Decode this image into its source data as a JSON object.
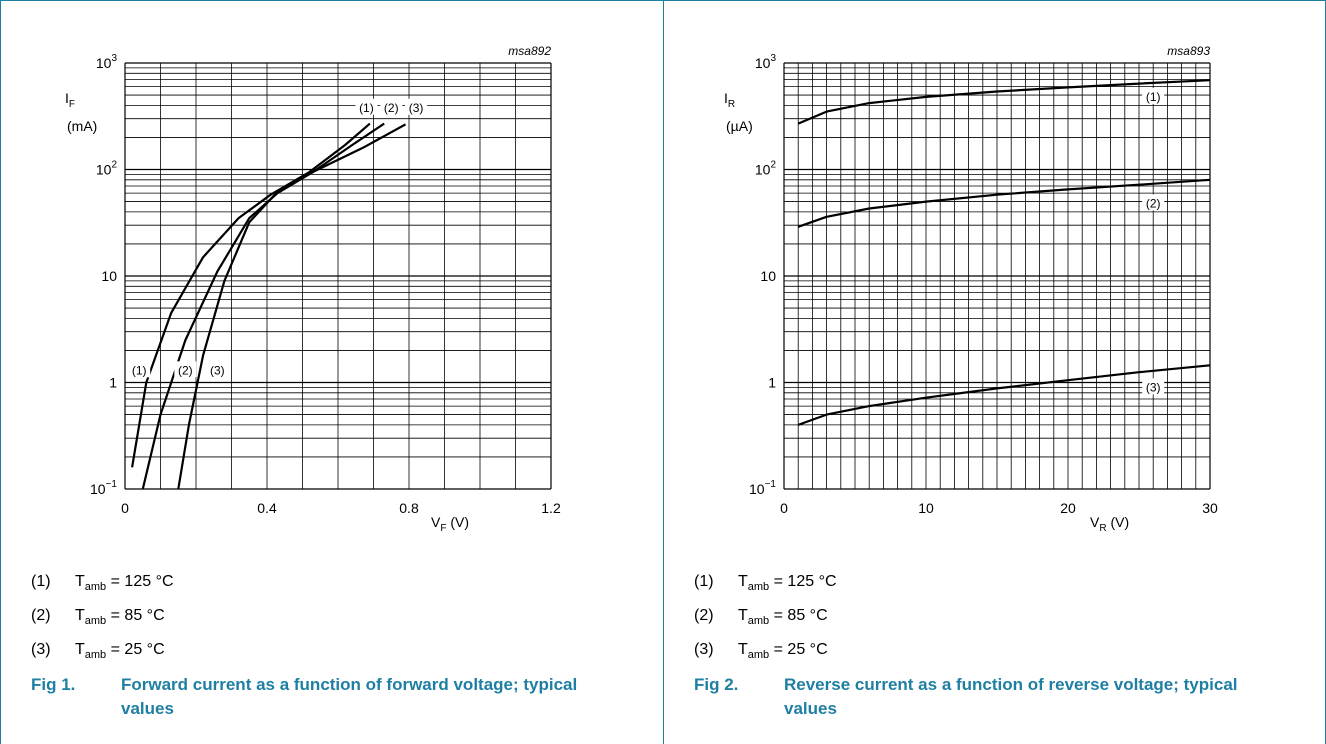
{
  "figures": [
    {
      "caption": {
        "number": "Fig 1.",
        "text": "Forward current as a function of forward voltage; typical values"
      },
      "legend": [
        {
          "num": "(1)",
          "sym": "T",
          "sub": "amb",
          "text": " = 125 °C"
        },
        {
          "num": "(2)",
          "sym": "T",
          "sub": "amb",
          "text": " = 85 °C"
        },
        {
          "num": "(3)",
          "sym": "T",
          "sub": "amb",
          "text": " = 25 °C"
        }
      ]
    },
    {
      "caption": {
        "number": "Fig 2.",
        "text": "Reverse current as a function of reverse voltage; typical values"
      },
      "legend": [
        {
          "num": "(1)",
          "sym": "T",
          "sub": "amb",
          "text": " = 125 °C"
        },
        {
          "num": "(2)",
          "sym": "T",
          "sub": "amb",
          "text": " = 85 °C"
        },
        {
          "num": "(3)",
          "sym": "T",
          "sub": "amb",
          "text": " = 25 °C"
        }
      ]
    }
  ],
  "chart_data": [
    {
      "type": "line",
      "code": "msa892",
      "x_scale": "linear",
      "y_scale": "log",
      "xlim": [
        0,
        1.2
      ],
      "ylim": [
        0.1,
        1000
      ],
      "grid": true,
      "x_ticks": [
        {
          "value": 0,
          "label": "0"
        },
        {
          "value": 0.4,
          "label": "0.4"
        },
        {
          "value": 0.8,
          "label": "0.8"
        },
        {
          "value": 1.2,
          "label": "1.2"
        }
      ],
      "y_ticks": [
        {
          "value": 0.1,
          "base": "10",
          "exp": "−1"
        },
        {
          "value": 1,
          "base": "1",
          "exp": ""
        },
        {
          "value": 10,
          "base": "10",
          "exp": ""
        },
        {
          "value": 100,
          "base": "10",
          "exp": "2"
        },
        {
          "value": 1000,
          "base": "10",
          "exp": "3"
        }
      ],
      "xlabel": {
        "main": "V",
        "sub": "F",
        "unit": " (V)"
      },
      "ylabel": {
        "main": "I",
        "sub": "F",
        "unit": "(mA)"
      },
      "series": [
        {
          "name": "(1)",
          "x": [
            0.02,
            0.06,
            0.13,
            0.22,
            0.32,
            0.41,
            0.52,
            0.62,
            0.69
          ],
          "y": [
            0.16,
            1.0,
            4.5,
            15,
            35,
            58,
            95,
            170,
            270
          ]
        },
        {
          "name": "(2)",
          "x": [
            0.05,
            0.1,
            0.17,
            0.26,
            0.35,
            0.43,
            0.53,
            0.64,
            0.73
          ],
          "y": [
            0.1,
            0.5,
            2.5,
            11,
            35,
            60,
            95,
            170,
            270
          ]
        },
        {
          "name": "(3)",
          "x": [
            0.15,
            0.18,
            0.22,
            0.28,
            0.35,
            0.43,
            0.53,
            0.67,
            0.79
          ],
          "y": [
            0.1,
            0.4,
            1.8,
            9,
            32,
            62,
            95,
            160,
            265
          ]
        }
      ],
      "curve_labels": [
        {
          "text": "(1)",
          "x": 0.68,
          "y": 380
        },
        {
          "text": "(2)",
          "x": 0.75,
          "y": 380
        },
        {
          "text": "(3)",
          "x": 0.82,
          "y": 380
        },
        {
          "text": "(1)",
          "x": 0.04,
          "y": 1.3
        },
        {
          "text": "(2)",
          "x": 0.17,
          "y": 1.3
        },
        {
          "text": "(3)",
          "x": 0.26,
          "y": 1.3
        }
      ]
    },
    {
      "type": "line",
      "code": "msa893",
      "x_scale": "linear",
      "y_scale": "log",
      "xlim": [
        0,
        30
      ],
      "ylim": [
        0.1,
        1000
      ],
      "grid": true,
      "x_ticks": [
        {
          "value": 0,
          "label": "0"
        },
        {
          "value": 10,
          "label": "10"
        },
        {
          "value": 20,
          "label": "20"
        },
        {
          "value": 30,
          "label": "30"
        }
      ],
      "y_ticks": [
        {
          "value": 0.1,
          "base": "10",
          "exp": "−1"
        },
        {
          "value": 1,
          "base": "1",
          "exp": ""
        },
        {
          "value": 10,
          "base": "10",
          "exp": ""
        },
        {
          "value": 100,
          "base": "10",
          "exp": "2"
        },
        {
          "value": 1000,
          "base": "10",
          "exp": "3"
        }
      ],
      "xlabel": {
        "main": "V",
        "sub": "R",
        "unit": " (V)"
      },
      "ylabel": {
        "main": "I",
        "sub": "R",
        "unit": "(µA)"
      },
      "series": [
        {
          "name": "(1)",
          "x": [
            1,
            3,
            6,
            10,
            15,
            20,
            25,
            30
          ],
          "y": [
            270,
            350,
            420,
            480,
            540,
            590,
            640,
            690
          ]
        },
        {
          "name": "(2)",
          "x": [
            1,
            3,
            6,
            10,
            15,
            20,
            25,
            30
          ],
          "y": [
            29,
            36,
            43,
            50,
            58,
            65,
            72,
            80
          ]
        },
        {
          "name": "(3)",
          "x": [
            1,
            3,
            6,
            10,
            15,
            20,
            25,
            30
          ],
          "y": [
            0.4,
            0.5,
            0.6,
            0.72,
            0.88,
            1.05,
            1.25,
            1.45
          ]
        }
      ],
      "curve_labels": [
        {
          "text": "(1)",
          "x": 26.0,
          "y": 480
        },
        {
          "text": "(2)",
          "x": 26.0,
          "y": 48
        },
        {
          "text": "(3)",
          "x": 26.0,
          "y": 0.9
        }
      ]
    }
  ]
}
